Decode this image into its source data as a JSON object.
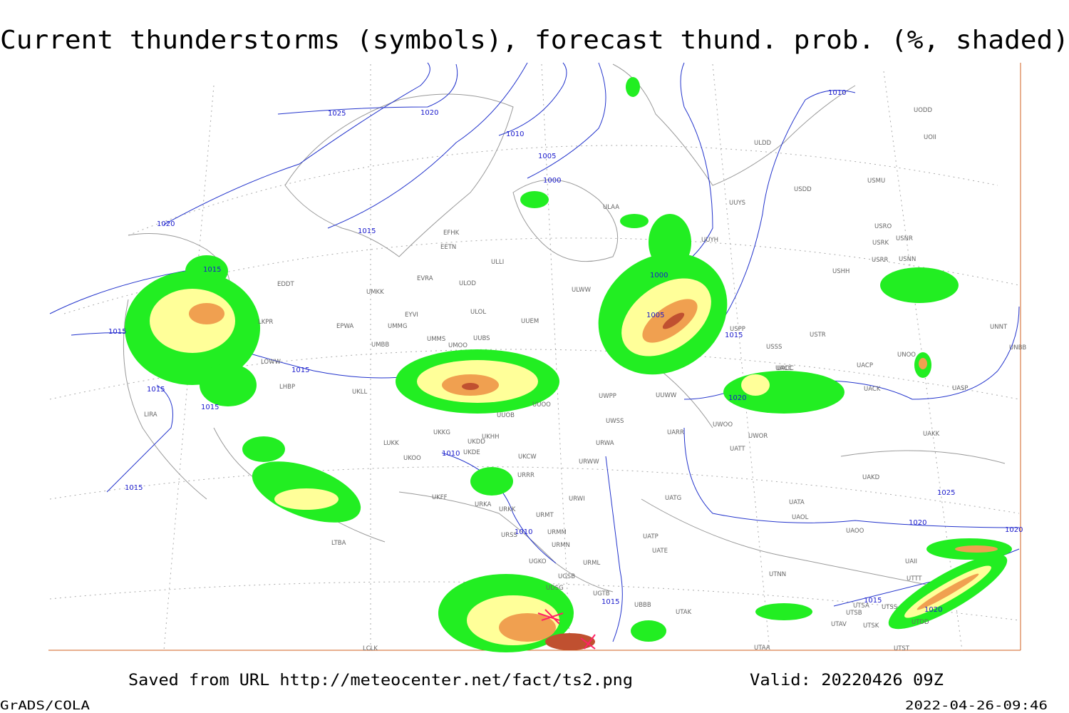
{
  "header": {
    "title": "Current thunderstorms (symbols), forecast thund. prob. (%, shaded)"
  },
  "isobar_labels": [
    "1025",
    "1020",
    "1010",
    "1005",
    "1000",
    "1020",
    "1015",
    "1010",
    "1015",
    "1015",
    "1000",
    "1005",
    "1015",
    "1015",
    "1015",
    "1015",
    "1020",
    "1010",
    "1015",
    "1010",
    "1025",
    "1020",
    "1020",
    "1015",
    "1015",
    "1020"
  ],
  "station_labels": [
    "UMKK",
    "EYVI",
    "UMMG",
    "EPWA",
    "UMBB",
    "UMMS",
    "UMOO",
    "UUBS",
    "UUEM",
    "ULOL",
    "ULOD",
    "EVRA",
    "EETN",
    "EFHK",
    "ULLI",
    "ULWW",
    "ULAA",
    "ULDD",
    "UUYS",
    "UUYH",
    "USDD",
    "USMU",
    "USRO",
    "USRK",
    "USNR",
    "USRR",
    "USNN",
    "USHH",
    "USPP",
    "USSS",
    "USTR",
    "UACC",
    "UACP",
    "UACK",
    "UNOO",
    "UNNT",
    "UNBB",
    "UASP",
    "UAKK",
    "UUWW",
    "UWPP",
    "UUOO",
    "UUOB",
    "UWOO",
    "UWOR",
    "UATT",
    "UARR",
    "UWSS",
    "URWA",
    "URWW",
    "UKCW",
    "URRR",
    "UKKG",
    "UKDD",
    "UKHH",
    "UKDE",
    "UKOO",
    "LUKK",
    "UKFF",
    "URKA",
    "URKK",
    "URMT",
    "URWI",
    "URMM",
    "URMN",
    "URSS",
    "URML",
    "UATG",
    "UATP",
    "UATE",
    "UATA",
    "UAOL",
    "UAOO",
    "UAKD",
    "UAII",
    "UTTT",
    "UTNN",
    "UBBB",
    "UTAK",
    "UTSA",
    "UTSB",
    "UTAV",
    "UTSK",
    "UTSS",
    "UTDD",
    "UTST",
    "UTAA",
    "UGTB",
    "UGSB",
    "UDSG",
    "UGKO",
    "LTBA",
    "LCLK",
    "LIRA",
    "LOWW",
    "LHBP",
    "LKPR",
    "EDDT",
    "UKLL",
    "UODD",
    "UOII",
    "UACC"
  ],
  "footer": {
    "saved_from": "Saved from URL http://meteocenter.net/fact/ts2.png",
    "valid": "Valid: 20220426 09Z",
    "software": "GrADS/COLA",
    "timestamp": "2022-04-26-09:46"
  }
}
